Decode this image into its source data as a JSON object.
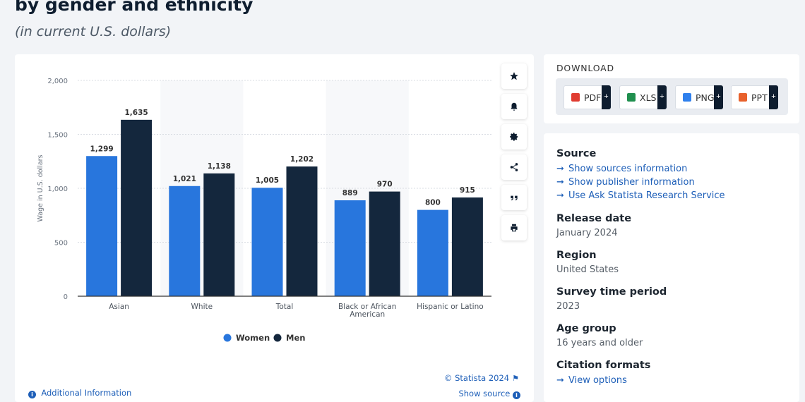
{
  "header": {
    "title": "by gender and ethnicity",
    "subtitle": "(in current U.S. dollars)"
  },
  "chart_data": {
    "type": "bar",
    "categories": [
      "Asian",
      "White",
      "Total",
      "Black or African American",
      "Hispanic or Latino"
    ],
    "series": [
      {
        "name": "Women",
        "values": [
          1299,
          1021,
          1005,
          889,
          800
        ],
        "color": "#2876dd"
      },
      {
        "name": "Men",
        "values": [
          1635,
          1138,
          1202,
          970,
          915
        ],
        "color": "#14273d"
      }
    ],
    "value_labels": {
      "Women": [
        "1,299",
        "1,021",
        "1,005",
        "889",
        "800"
      ],
      "Men": [
        "1,635",
        "1,138",
        "1,202",
        "970",
        "915"
      ]
    },
    "ylabel": "Wage in U.S. dollars",
    "xlabel": "",
    "ylim": [
      0,
      2000
    ],
    "yticks": [
      0,
      500,
      1000,
      1500,
      2000
    ],
    "ytick_labels": [
      "0",
      "500",
      "1,000",
      "1,500",
      "2,000"
    ],
    "grid": true,
    "legend_position": "bottom-center"
  },
  "tools": {
    "icons": [
      "star-icon",
      "bell-icon",
      "gear-icon",
      "share-icon",
      "quote-icon",
      "print-icon"
    ]
  },
  "footer": {
    "credit": "© Statista 2024",
    "show_source": "Show source",
    "additional_info": "Additional Information"
  },
  "download": {
    "title": "DOWNLOAD",
    "buttons": [
      {
        "label": "PDF",
        "color": "#e03c31"
      },
      {
        "label": "XLS",
        "color": "#1f8f4e"
      },
      {
        "label": "PNG",
        "color": "#2f80ed"
      },
      {
        "label": "PPT",
        "color": "#e8612c"
      }
    ],
    "plus": "+"
  },
  "meta": {
    "source_heading": "Source",
    "source_links": [
      "Show sources information",
      "Show publisher information",
      "Use Ask Statista Research Service"
    ],
    "release_heading": "Release date",
    "release_value": "January 2024",
    "region_heading": "Region",
    "region_value": "United States",
    "survey_heading": "Survey time period",
    "survey_value": "2023",
    "age_heading": "Age group",
    "age_value": "16 years and older",
    "citation_heading": "Citation formats",
    "citation_link": "View options"
  }
}
